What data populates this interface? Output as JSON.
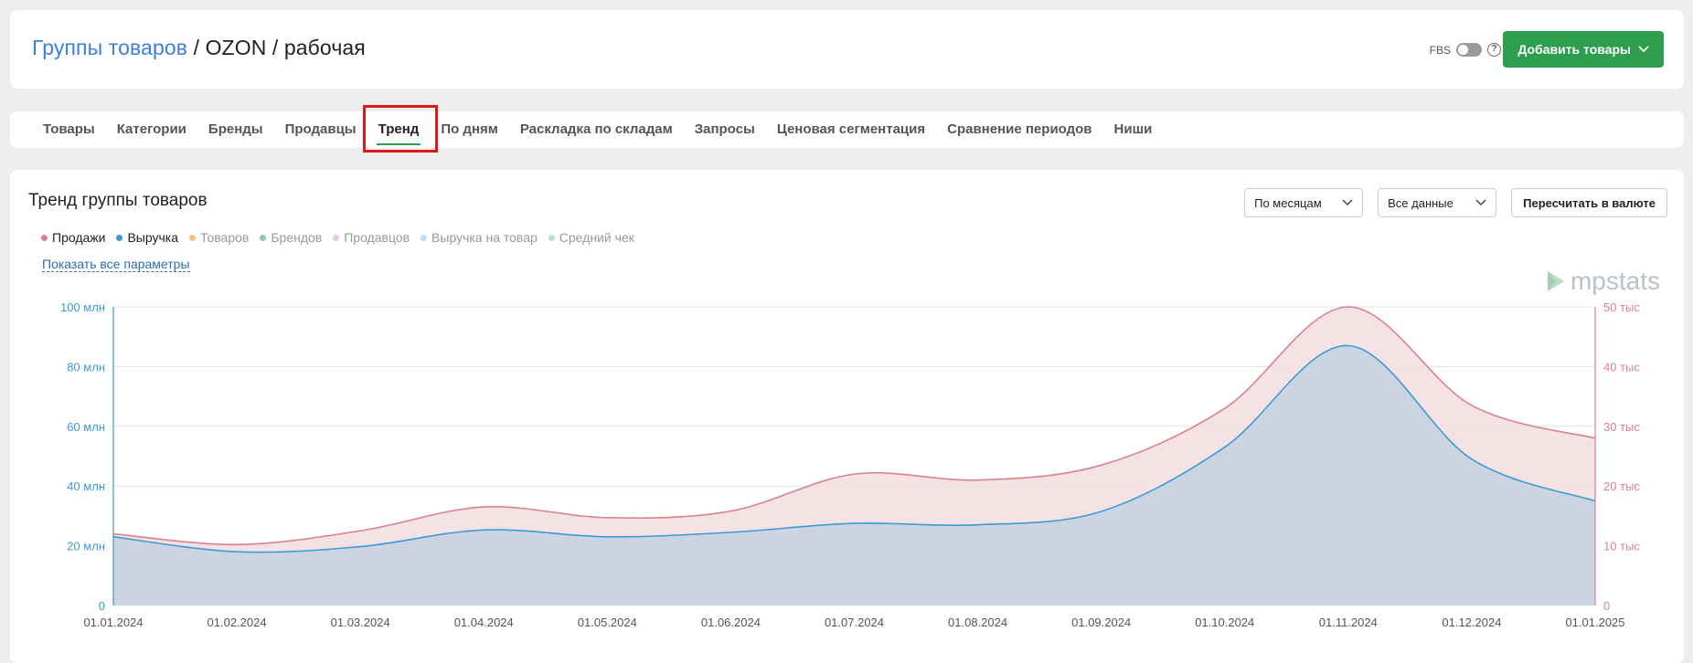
{
  "header": {
    "breadcrumb_link": "Группы товаров",
    "separator": "/",
    "breadcrumb_rest": "OZON / рабочая",
    "fbs_label": "FBS",
    "help_glyph": "?",
    "add_button": "Добавить товары"
  },
  "tabs": [
    {
      "label": "Товары"
    },
    {
      "label": "Категории"
    },
    {
      "label": "Бренды"
    },
    {
      "label": "Продавцы"
    },
    {
      "label": "Тренд"
    },
    {
      "label": "По дням"
    },
    {
      "label": "Раскладка по складам"
    },
    {
      "label": "Запросы"
    },
    {
      "label": "Ценовая сегментация"
    },
    {
      "label": "Сравнение периодов"
    },
    {
      "label": "Ниши"
    }
  ],
  "active_tab": "Тренд",
  "chart_card": {
    "title": "Тренд группы товаров",
    "period_select": "По месяцам",
    "data_select": "Все данные",
    "recalc_button": "Пересчитать в валюте",
    "show_all": "Показать все параметры",
    "logo_text": "mpstats"
  },
  "legend": [
    {
      "label": "Продажи",
      "color": "#d9828d",
      "on": true
    },
    {
      "label": "Выручка",
      "color": "#3a9bd5",
      "on": true
    },
    {
      "label": "Товаров",
      "color": "#f5c27e",
      "on": false
    },
    {
      "label": "Брендов",
      "color": "#8fcaa9",
      "on": false
    },
    {
      "label": "Продавцов",
      "color": "#e3c7f0",
      "on": false
    },
    {
      "label": "Выручка на товар",
      "color": "#bfe0ea",
      "on": false
    },
    {
      "label": "Средний чек",
      "color": "#b7e3c9",
      "on": false
    }
  ],
  "chart_data": {
    "type": "area",
    "x": [
      "01.01.2024",
      "01.02.2024",
      "01.03.2024",
      "01.04.2024",
      "01.05.2024",
      "01.06.2024",
      "01.07.2024",
      "01.08.2024",
      "01.09.2024",
      "01.10.2024",
      "01.11.2024",
      "01.12.2024",
      "01.01.2025"
    ],
    "left_axis": {
      "ticks": [
        "0",
        "20 млн",
        "40 млн",
        "60 млн",
        "80 млн",
        "100 млн"
      ],
      "range": [
        0,
        100
      ],
      "color": "#3a9bd5"
    },
    "right_axis": {
      "ticks": [
        "0",
        "10 тыс",
        "20 тыс",
        "30 тыс",
        "40 тыс",
        "50 тыс"
      ],
      "range": [
        0,
        50
      ],
      "color": "#d9828d"
    },
    "series": [
      {
        "name": "Продажи",
        "axis": "right",
        "color": "#d9828d",
        "fill": "#f3dde1",
        "values": [
          12,
          10.2,
          12.5,
          16.5,
          14.7,
          15.8,
          22,
          21,
          23.5,
          33,
          50,
          33.5,
          28
        ]
      },
      {
        "name": "Выручка",
        "axis": "left",
        "color": "#3a9bd5",
        "fill": "#c9d3e0",
        "values": [
          23,
          18,
          19.7,
          25.3,
          23,
          24.5,
          27.5,
          27,
          31.5,
          53,
          87,
          49,
          35
        ]
      }
    ],
    "grid": true
  }
}
